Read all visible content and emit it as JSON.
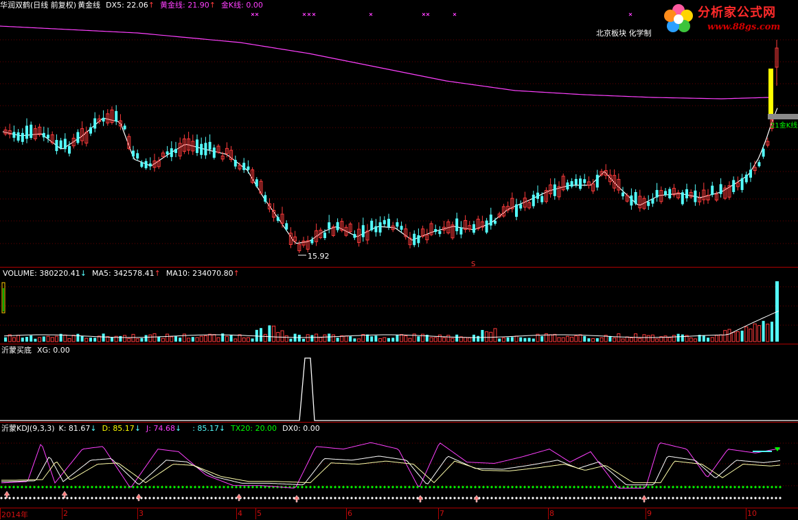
{
  "main_panel": {
    "stock": "华润双鹤(日线 前复权)",
    "indicator": "黄金线",
    "dx5_label": "DX5: 22.06",
    "gold_label": "黄金线: 21.90",
    "goldk_label": "金K线: 0.00",
    "low_label": "15.92",
    "s_marker": "S",
    "right_label": "21金K线",
    "sector_text": "北京板块   化学制"
  },
  "volume_panel": {
    "volume_label": "VOLUME: 380220.41",
    "ma5_label": "MA5: 342578.41",
    "ma10_label": "MA10: 234070.80"
  },
  "xg_panel": {
    "name": "沂蒙买底",
    "xg_label": "XG: 0.00"
  },
  "kdj_panel": {
    "name": "沂蒙KDJ(9,3,3)",
    "k_label": "K: 81.67",
    "d_label": "D: 85.17",
    "j_label": "J: 74.68",
    "blank_label": ": 85.17",
    "tx20_label": "TX20: 20.00",
    "dx0_label": "DX0: 0.00"
  },
  "x_axis": {
    "ticks": [
      "2014年",
      "2",
      "3",
      "4",
      "5",
      "6",
      "7",
      "8",
      "9",
      "10"
    ]
  },
  "logo": {
    "text": "分析家公式网",
    "url": "www.88gs.com"
  },
  "colors": {
    "up": "#ff3b3b",
    "down": "#54ffff",
    "magenta": "#ff40ff",
    "white": "#ffffff",
    "yellow": "#ffff00",
    "green": "#00ff00",
    "separator": "#b00000"
  }
}
